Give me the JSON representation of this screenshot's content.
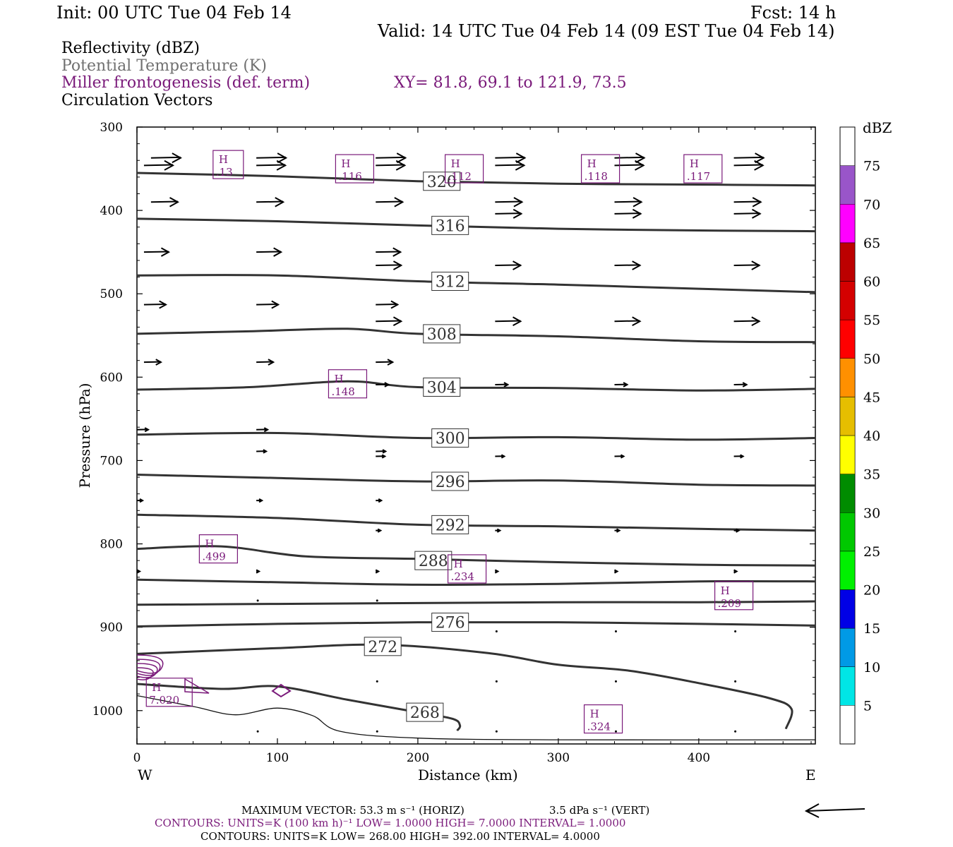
{
  "header": {
    "init": "Init: 00 UTC Tue 04 Feb 14",
    "fcst": "Fcst:   14 h",
    "valid": "Valid: 14 UTC Tue 04 Feb 14 (09 EST Tue 04 Feb 14)"
  },
  "legend_lines": [
    {
      "text": "Reflectivity (dBZ)",
      "color": "#000000"
    },
    {
      "text": "Potential Temperature (K)",
      "color": "#707070"
    },
    {
      "text": "Miller frontogenesis (def. term)",
      "color": "#7a1a7a"
    },
    {
      "text": "Circulation Vectors",
      "color": "#000000"
    }
  ],
  "xy_label": "XY=  81.8, 69.1 to 121.9, 73.5",
  "footer": {
    "max_vector": "MAXIMUM VECTOR:  53.3 m s⁻¹ (HORIZ)",
    "vert": "3.5 dPa s⁻¹ (VERT)",
    "contours_fronto": "CONTOURS:  UNITS=K (100 km h)⁻¹  LOW=   1.0000      HIGH=   7.0000      INTERVAL=    1.0000",
    "contours_theta": "CONTOURS:  UNITS=K  LOW=   268.00        HIGH=   392.00        INTERVAL=    4.0000"
  },
  "colorbar": {
    "title": "dBZ",
    "levels": [
      "5",
      "10",
      "15",
      "20",
      "25",
      "30",
      "35",
      "40",
      "45",
      "50",
      "55",
      "60",
      "65",
      "70",
      "75"
    ],
    "colors": [
      "#00e6e6",
      "#009ae6",
      "#0000e6",
      "#00f000",
      "#00c800",
      "#008c00",
      "#ffff00",
      "#e6be00",
      "#ff9000",
      "#ff0000",
      "#d40000",
      "#bc0000",
      "#ff00ff",
      "#9955c9"
    ]
  },
  "chart_data": {
    "type": "cross-section",
    "xlabel": "Distance (km)",
    "ylabel": "Pressure (hPa)",
    "xlim": [
      0,
      483
    ],
    "ylim": [
      1040,
      300
    ],
    "x_ticks": [
      "0",
      "100",
      "200",
      "300",
      "400"
    ],
    "y_ticks": [
      "300",
      "400",
      "500",
      "600",
      "700",
      "800",
      "900",
      "1000"
    ],
    "x_end_labels": {
      "left": "W",
      "right": "E"
    },
    "theta_contours": [
      {
        "label": "320",
        "label_x": 217,
        "label_p": 365,
        "points": [
          [
            0,
            355
          ],
          [
            100,
            359
          ],
          [
            200,
            365
          ],
          [
            300,
            368
          ],
          [
            400,
            369
          ],
          [
            483,
            370
          ]
        ]
      },
      {
        "label": "316",
        "label_x": 223,
        "label_p": 418,
        "points": [
          [
            0,
            410
          ],
          [
            100,
            413
          ],
          [
            200,
            418
          ],
          [
            300,
            422
          ],
          [
            400,
            424
          ],
          [
            483,
            425
          ]
        ]
      },
      {
        "label": "312",
        "label_x": 223,
        "label_p": 485,
        "points": [
          [
            0,
            478
          ],
          [
            100,
            478
          ],
          [
            200,
            485
          ],
          [
            300,
            489
          ],
          [
            400,
            494
          ],
          [
            483,
            498
          ]
        ]
      },
      {
        "label": "308",
        "label_x": 217,
        "label_p": 548,
        "points": [
          [
            0,
            548
          ],
          [
            80,
            545
          ],
          [
            150,
            542
          ],
          [
            200,
            548
          ],
          [
            300,
            551
          ],
          [
            400,
            557
          ],
          [
            483,
            558
          ]
        ]
      },
      {
        "label": "304",
        "label_x": 217,
        "label_p": 612,
        "points": [
          [
            0,
            615
          ],
          [
            80,
            612
          ],
          [
            150,
            605
          ],
          [
            200,
            612
          ],
          [
            300,
            613
          ],
          [
            400,
            616
          ],
          [
            483,
            614
          ]
        ]
      },
      {
        "label": "300",
        "label_x": 223,
        "label_p": 673,
        "points": [
          [
            0,
            669
          ],
          [
            100,
            667
          ],
          [
            200,
            673
          ],
          [
            300,
            672
          ],
          [
            400,
            675
          ],
          [
            483,
            673
          ]
        ]
      },
      {
        "label": "296",
        "label_x": 223,
        "label_p": 725,
        "points": [
          [
            0,
            717
          ],
          [
            100,
            721
          ],
          [
            200,
            725
          ],
          [
            300,
            724
          ],
          [
            400,
            729
          ],
          [
            483,
            730
          ]
        ]
      },
      {
        "label": "292",
        "label_x": 223,
        "label_p": 777,
        "points": [
          [
            0,
            765
          ],
          [
            100,
            769
          ],
          [
            200,
            777
          ],
          [
            300,
            779
          ],
          [
            400,
            782
          ],
          [
            483,
            784
          ]
        ]
      },
      {
        "label": "288",
        "label_x": 211,
        "label_p": 820,
        "points": [
          [
            0,
            806
          ],
          [
            60,
            803
          ],
          [
            120,
            815
          ],
          [
            200,
            818
          ],
          [
            300,
            822
          ],
          [
            400,
            825
          ],
          [
            483,
            826
          ]
        ]
      },
      {
        "label": "",
        "label_x": 0,
        "label_p": 0,
        "points": [
          [
            0,
            843
          ],
          [
            100,
            846
          ],
          [
            200,
            849
          ],
          [
            300,
            848
          ],
          [
            400,
            845
          ],
          [
            483,
            845
          ]
        ]
      },
      {
        "label": "",
        "label_x": 0,
        "label_p": 0,
        "points": [
          [
            0,
            873
          ],
          [
            100,
            872
          ],
          [
            200,
            871
          ],
          [
            300,
            870
          ],
          [
            400,
            870
          ],
          [
            483,
            869
          ]
        ]
      },
      {
        "label": "276",
        "label_x": 223,
        "label_p": 894,
        "points": [
          [
            0,
            899
          ],
          [
            100,
            896
          ],
          [
            200,
            894
          ],
          [
            300,
            894
          ],
          [
            400,
            896
          ],
          [
            483,
            898
          ]
        ]
      },
      {
        "label": "272",
        "label_x": 175,
        "label_p": 923,
        "points": [
          [
            0,
            932
          ],
          [
            100,
            925
          ],
          [
            175,
            921
          ],
          [
            250,
            931
          ],
          [
            300,
            945
          ],
          [
            350,
            952
          ],
          [
            400,
            967
          ],
          [
            450,
            985
          ],
          [
            466,
            998
          ],
          [
            462,
            1022
          ]
        ]
      },
      {
        "label": "268",
        "label_x": 205,
        "label_p": 1002,
        "points": [
          [
            0,
            968
          ],
          [
            60,
            974
          ],
          [
            100,
            971
          ],
          [
            150,
            987
          ],
          [
            200,
            1002
          ],
          [
            225,
            1010
          ],
          [
            230,
            1018
          ],
          [
            228,
            1024
          ]
        ]
      },
      {
        "label": "",
        "label_x": 0,
        "label_p": 0,
        "points": [
          [
            0,
            982
          ],
          [
            40,
            995
          ],
          [
            70,
            1005
          ],
          [
            100,
            997
          ],
          [
            125,
            1006
          ],
          [
            145,
            1025
          ],
          [
            200,
            1033
          ],
          [
            300,
            1035
          ],
          [
            483,
            1035
          ]
        ]
      }
    ],
    "frontogenesis_maxima": [
      {
        "label": "H",
        "value": ".13",
        "x": 65,
        "p": 345
      },
      {
        "label": "H",
        "value": ".116",
        "x": 155,
        "p": 350
      },
      {
        "label": "H",
        "value": ".112",
        "x": 233,
        "p": 350
      },
      {
        "label": "H",
        "value": ".118",
        "x": 330,
        "p": 350
      },
      {
        "label": "H",
        "value": ".117",
        "x": 403,
        "p": 350
      },
      {
        "label": "H",
        "value": ".148",
        "x": 150,
        "p": 608
      },
      {
        "label": "H",
        "value": ".499",
        "x": 58,
        "p": 806
      },
      {
        "label": "H",
        "value": ".234",
        "x": 235,
        "p": 830
      },
      {
        "label": "H",
        "value": ".209",
        "x": 425,
        "p": 862
      },
      {
        "label": "H",
        "value": "7.020",
        "x": 23,
        "p": 978
      },
      {
        "label": "H",
        "value": ".324",
        "x": 332,
        "p": 1010
      }
    ],
    "vectors": [
      {
        "p": 337,
        "x": [
          10,
          85,
          170,
          255,
          340,
          425
        ],
        "len": 42
      },
      {
        "p": 346,
        "x": [
          5,
          85,
          170,
          255,
          340,
          425
        ],
        "len": 41
      },
      {
        "p": 390,
        "x": [
          10,
          85,
          170,
          255,
          340,
          425
        ],
        "len": 38
      },
      {
        "p": 404,
        "x": [
          255,
          340,
          425
        ],
        "len": 37
      },
      {
        "p": 450,
        "x": [
          5,
          85,
          170
        ],
        "len": 35
      },
      {
        "p": 466,
        "x": [
          170,
          255,
          340,
          425
        ],
        "len": 36
      },
      {
        "p": 513,
        "x": [
          5,
          85,
          170
        ],
        "len": 31
      },
      {
        "p": 533,
        "x": [
          170,
          255,
          340,
          425
        ],
        "len": 36
      },
      {
        "p": 582,
        "x": [
          5,
          85,
          170
        ],
        "len": 24
      },
      {
        "p": 609,
        "x": [
          170,
          255,
          340,
          425
        ],
        "len": 18
      },
      {
        "p": 663,
        "x": [
          0,
          85
        ],
        "len": 16
      },
      {
        "p": 689,
        "x": [
          85,
          170
        ],
        "len": 14
      },
      {
        "p": 695,
        "x": [
          170,
          255,
          340,
          425
        ],
        "len": 13
      },
      {
        "p": 748,
        "x": [
          0,
          85,
          170
        ],
        "len": 8
      },
      {
        "p": 784,
        "x": [
          170,
          255,
          340,
          425
        ],
        "len": 7
      },
      {
        "p": 833,
        "x": [
          0,
          85,
          170,
          255,
          340,
          425
        ],
        "len": 4
      },
      {
        "p": 868,
        "x": [
          85,
          170
        ],
        "len": 3
      },
      {
        "p": 905,
        "x": [
          255,
          340,
          425
        ],
        "len": 2
      },
      {
        "p": 965,
        "x": [
          170,
          255,
          340,
          425
        ],
        "len": 1
      },
      {
        "p": 1025,
        "x": [
          85,
          170,
          255,
          340,
          425
        ],
        "len": 2
      }
    ]
  }
}
